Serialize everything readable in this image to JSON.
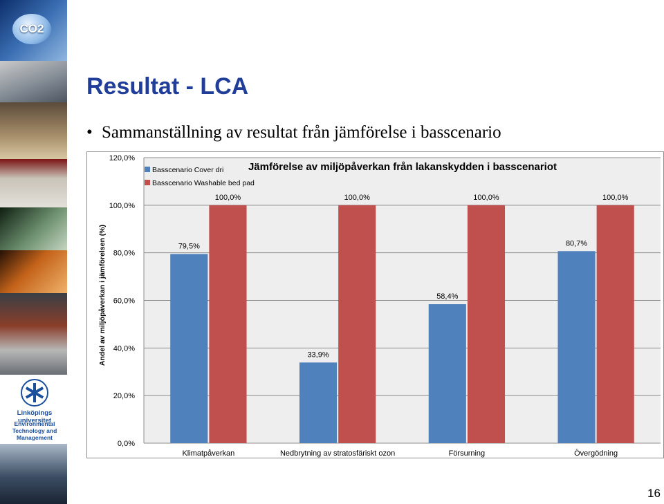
{
  "sidebar": {
    "badge_text": "CO2",
    "university": "Linköpings universitet",
    "department": "Environmental Technology and Management"
  },
  "slide": {
    "title": "Resultat - LCA",
    "bullet": "Sammanställning av resultat från jämförelse i basscenario",
    "page_number": "16"
  },
  "colors": {
    "title": "#1f3d99",
    "series_1": "#4f81bd",
    "series_2": "#c0504d",
    "plot_area": "#eeeeee",
    "gridline": "#8c8c8c"
  },
  "chart_data": {
    "type": "bar",
    "title": "Jämförelse av miljöpåverkan från lakanskydden i basscenariot",
    "ylabel": "Andel av miljöpåverkan i jämförelsen (%)",
    "xlabel": "",
    "ylim": [
      0,
      120
    ],
    "yticks": [
      0,
      20,
      40,
      60,
      80,
      100,
      120
    ],
    "ytick_labels": [
      "0,0%",
      "20,0%",
      "40,0%",
      "60,0%",
      "80,0%",
      "100,0%",
      "120,0%"
    ],
    "grid": true,
    "legend_position": "top-left",
    "categories": [
      "Klimatpåverkan",
      "Nedbrytning av stratosfäriskt ozon",
      "Försurning",
      "Övergödning"
    ],
    "series": [
      {
        "name": "Basscenario Cover dri",
        "values": [
          79.5,
          33.9,
          58.4,
          80.7
        ],
        "labels": [
          "79,5%",
          "33,9%",
          "58,4%",
          "80,7%"
        ]
      },
      {
        "name": "Basscenario Washable bed pad",
        "values": [
          100.0,
          100.0,
          100.0,
          100.0
        ],
        "labels": [
          "100,0%",
          "100,0%",
          "100,0%",
          "100,0%"
        ]
      }
    ]
  }
}
